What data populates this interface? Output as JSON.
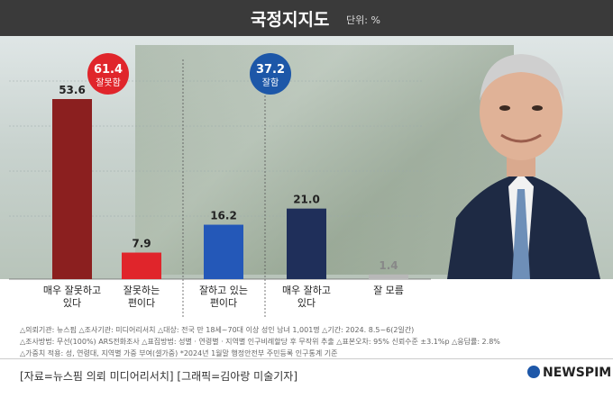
{
  "header": {
    "title": "국정지지도",
    "unit": "단위: %"
  },
  "chart_data": {
    "type": "bar",
    "categories": [
      "매우 잘못하고\n있다",
      "잘못하는\n편이다",
      "잘하고 있는\n편이다",
      "매우 잘하고\n있다",
      "잘 모름"
    ],
    "values": [
      53.6,
      7.9,
      16.2,
      21.0,
      1.4
    ],
    "value_labels": [
      "53.6",
      "7.9",
      "16.2",
      "21.0",
      "1.4"
    ],
    "ylim": [
      0,
      60
    ],
    "bar_colors": [
      "#8b1f1f",
      "#e0252b",
      "#2458b8",
      "#1f2f5a",
      "#b8b8b8"
    ],
    "summary": [
      {
        "value": "61.4",
        "label": "잘못함",
        "color": "#e0252b"
      },
      {
        "value": "37.2",
        "label": "잘함",
        "color": "#1d57a8"
      }
    ],
    "grid": true
  },
  "footnotes": [
    "△의뢰기관: 뉴스핌  △조사기관: 미디어리서치  △대상: 전국 만 18세~70대 이상 성인 남녀 1,001명  △기간: 2024. 8.5~6(2일간)",
    "△조사방법: 무선(100%) ARS전화조사  △표집방법: 성별 · 연령별 · 지역별 인구비례할당 후 무작위 추출  △표본오차: 95% 신뢰수준 ±3.1%p  △응답률: 2.8%",
    "△가중치 적용: 성, 연령대, 지역별 가중 부여(셀가중) *2024년 1월말 행정안전부 주민등록 인구통계 기준"
  ],
  "source": "[자료=뉴스핌 의뢰 미디어리서치] [그래픽=김아랑 미술기자]",
  "logo": "NEWSPIM",
  "colors": {
    "header": "#3a3a3a",
    "brand": "#1d57a8"
  }
}
